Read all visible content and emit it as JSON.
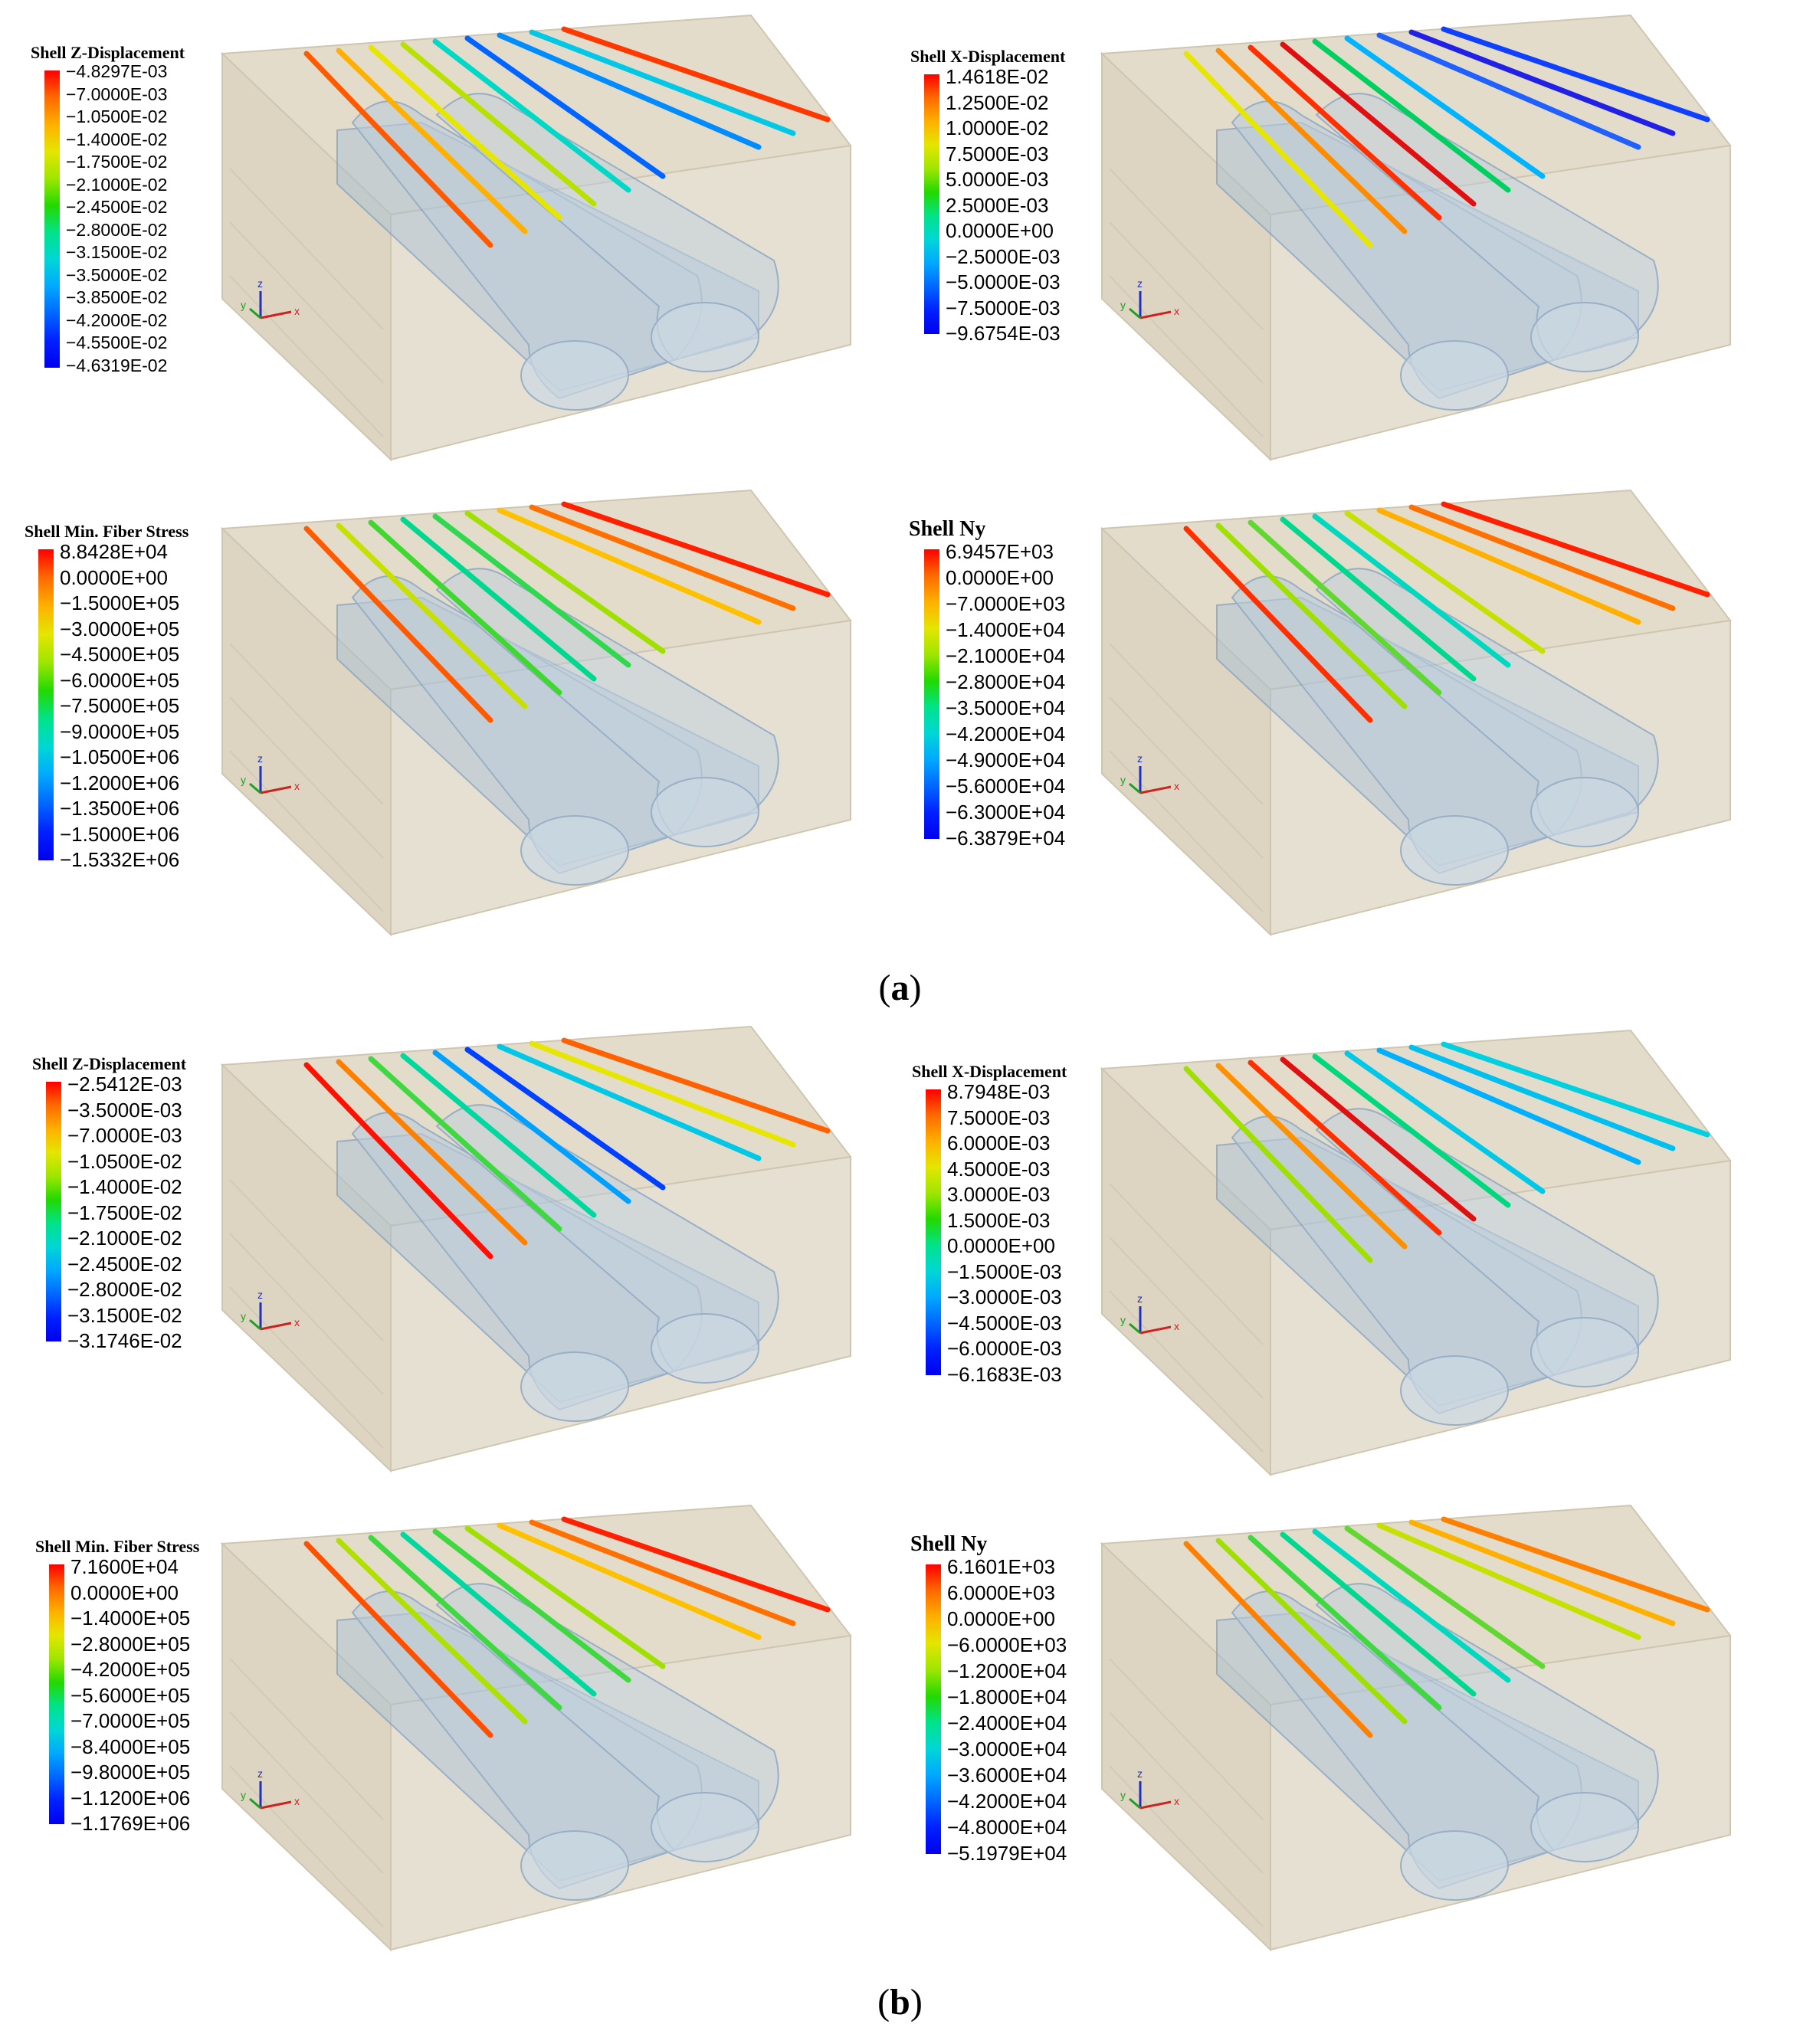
{
  "captions": {
    "a": "a",
    "b": "b"
  },
  "axis_labels": {
    "x": "x",
    "y": "y",
    "z": "z"
  },
  "colors": {
    "box_fill": "#e3dccb",
    "box_edge": "#cfc6b1",
    "tunnel": "#9fbad6",
    "scale": [
      "#ff0000",
      "#ff6a00",
      "#ffb000",
      "#e3e600",
      "#9ee600",
      "#22d900",
      "#00e38a",
      "#00d6d6",
      "#00a8ff",
      "#0066ff",
      "#0020ff",
      "#0000ee"
    ]
  },
  "panels": [
    {
      "id": "a1",
      "title": "Shell Z-Displacement",
      "title_size": "small",
      "values": [
        "−4.8297E-03",
        "−7.0000E-03",
        "−1.0500E-02",
        "−1.4000E-02",
        "−1.7500E-02",
        "−2.1000E-02",
        "−2.4500E-02",
        "−2.8000E-02",
        "−3.1500E-02",
        "−3.5000E-02",
        "−3.8500E-02",
        "−4.2000E-02",
        "−4.5500E-02",
        "−4.6319E-02"
      ],
      "line_colors": [
        "#ff5a00",
        "#ffb000",
        "#e6e600",
        "#b8e000",
        "#00d8c8",
        "#0064ff",
        "#008cff",
        "#00c8e6",
        "#ff3800"
      ]
    },
    {
      "id": "a2",
      "title": "Shell X-Displacement",
      "title_size": "small",
      "values": [
        "1.4618E-02",
        "1.2500E-02",
        "1.0000E-02",
        "7.5000E-03",
        "5.0000E-03",
        "2.5000E-03",
        "0.0000E+00",
        "−2.5000E-03",
        "−5.0000E-03",
        "−7.5000E-03",
        "−9.6754E-03"
      ],
      "line_colors": [
        "#e6e600",
        "#ff8c00",
        "#ff3000",
        "#e01010",
        "#00d060",
        "#00b4ff",
        "#2060ff",
        "#2020e6",
        "#1040ff"
      ]
    },
    {
      "id": "a3",
      "title": "Shell Min. Fiber Stress",
      "title_size": "small",
      "values": [
        "8.8428E+04",
        "0.0000E+00",
        "−1.5000E+05",
        "−3.0000E+05",
        "−4.5000E+05",
        "−6.0000E+05",
        "−7.5000E+05",
        "−9.0000E+05",
        "−1.0500E+06",
        "−1.2000E+06",
        "−1.3500E+06",
        "−1.5000E+06",
        "−1.5332E+06"
      ],
      "line_colors": [
        "#ff5a00",
        "#c8e000",
        "#40d830",
        "#00d890",
        "#30d850",
        "#a0e000",
        "#ffc000",
        "#ff7000",
        "#ff2000"
      ]
    },
    {
      "id": "a4",
      "title": "Shell Ny",
      "title_size": "large",
      "values": [
        "6.9457E+03",
        "0.0000E+00",
        "−7.0000E+03",
        "−1.4000E+04",
        "−2.1000E+04",
        "−2.8000E+04",
        "−3.5000E+04",
        "−4.2000E+04",
        "−4.9000E+04",
        "−5.6000E+04",
        "−6.3000E+04",
        "−6.3879E+04"
      ],
      "line_colors": [
        "#ff3000",
        "#a0e000",
        "#60d830",
        "#00d890",
        "#00d8c0",
        "#c8e000",
        "#ffb000",
        "#ff7000",
        "#ff2000"
      ]
    },
    {
      "id": "b1",
      "title": "Shell Z-Displacement",
      "title_size": "small",
      "values": [
        "−2.5412E-03",
        "−3.5000E-03",
        "−7.0000E-03",
        "−1.0500E-02",
        "−1.4000E-02",
        "−1.7500E-02",
        "−2.1000E-02",
        "−2.4500E-02",
        "−2.8000E-02",
        "−3.1500E-02",
        "−3.1746E-02"
      ],
      "line_colors": [
        "#ff1000",
        "#ff8000",
        "#40d840",
        "#00d8a0",
        "#00a0ff",
        "#0040ff",
        "#00c8e6",
        "#e6e600",
        "#ff6000"
      ]
    },
    {
      "id": "b2",
      "title": "Shell X-Displacement",
      "title_size": "small",
      "values": [
        "8.7948E-03",
        "7.5000E-03",
        "6.0000E-03",
        "4.5000E-03",
        "3.0000E-03",
        "1.5000E-03",
        "0.0000E+00",
        "−1.5000E-03",
        "−3.0000E-03",
        "−4.5000E-03",
        "−6.0000E-03",
        "−6.1683E-03"
      ],
      "line_colors": [
        "#a0e000",
        "#ff9000",
        "#ff3000",
        "#e01010",
        "#00d880",
        "#00c8e6",
        "#00b0ff",
        "#00c0f0",
        "#00d0e0"
      ]
    },
    {
      "id": "b3",
      "title": "Shell Min. Fiber Stress",
      "title_size": "small",
      "values": [
        "7.1600E+04",
        "0.0000E+00",
        "−1.4000E+05",
        "−2.8000E+05",
        "−4.2000E+05",
        "−5.6000E+05",
        "−7.0000E+05",
        "−8.4000E+05",
        "−9.8000E+05",
        "−1.1200E+06",
        "−1.1769E+06"
      ],
      "line_colors": [
        "#ff5000",
        "#b0e000",
        "#40d840",
        "#00d8a0",
        "#40d840",
        "#a0e000",
        "#ffc000",
        "#ff7000",
        "#ff2000"
      ]
    },
    {
      "id": "b4",
      "title": "Shell Ny",
      "title_size": "large",
      "values": [
        "6.1601E+03",
        "6.0000E+03",
        "0.0000E+00",
        "−6.0000E+03",
        "−1.2000E+04",
        "−1.8000E+04",
        "−2.4000E+04",
        "−3.0000E+04",
        "−3.6000E+04",
        "−4.2000E+04",
        "−4.8000E+04",
        "−5.1979E+04"
      ],
      "line_colors": [
        "#ff8000",
        "#a0e000",
        "#40d840",
        "#00d890",
        "#00d8c0",
        "#60d830",
        "#c8e000",
        "#ffb000",
        "#ff8000"
      ]
    }
  ]
}
